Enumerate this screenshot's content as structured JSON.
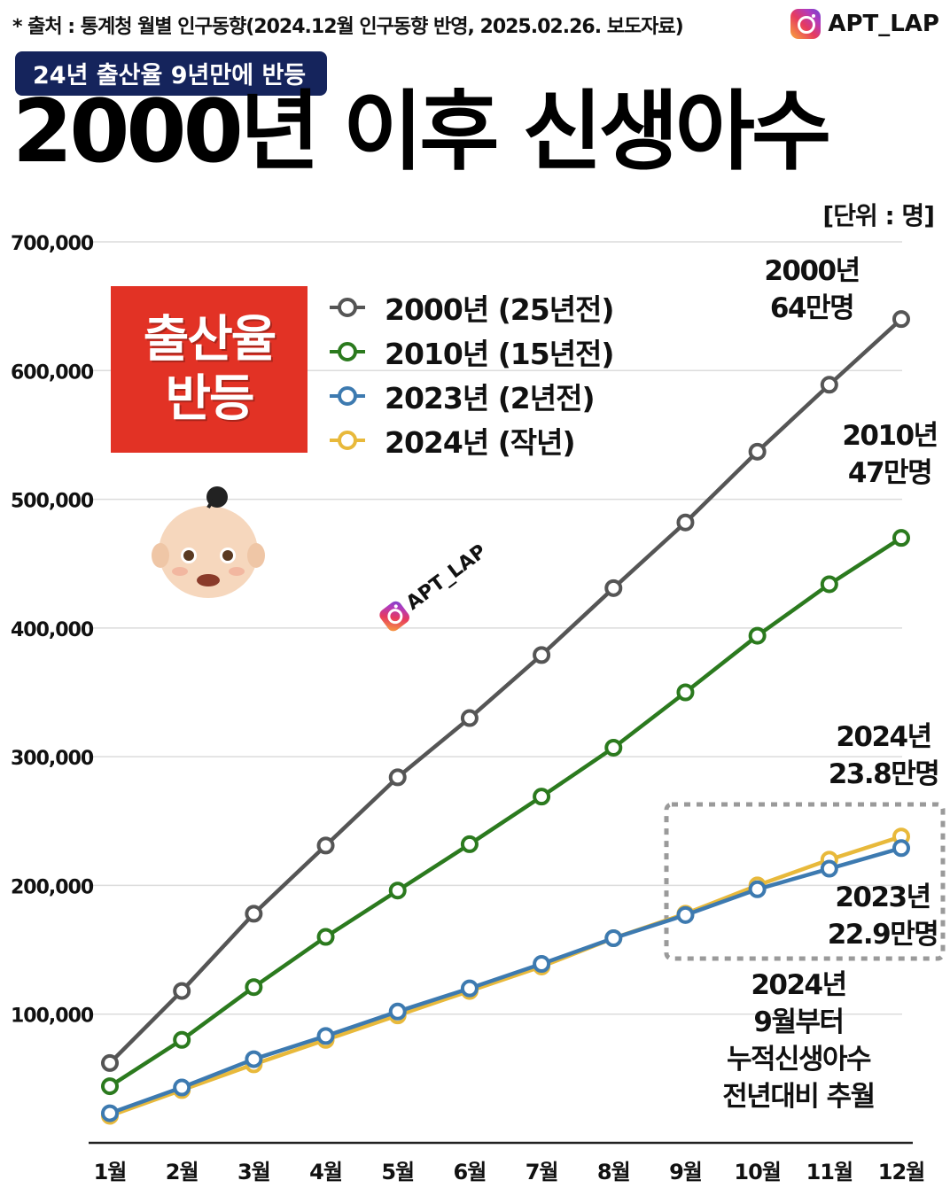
{
  "header": {
    "source": "* 출처 : 통계청 월별 인구동향(2024.12월 인구동향 반영, 2025.02.26. 보도자료)",
    "brand": "APT_LAP",
    "tag": "24년 출산율 9년만에 반등",
    "title": "2000년 이후 신생아수",
    "unit": "[단위 : 명]"
  },
  "badge": {
    "line1": "출산율",
    "line2": "반등"
  },
  "icons": {
    "brand": "instagram-icon",
    "baby": "baby-emoji-icon"
  },
  "watermark": "APT_LAP",
  "chart_data": {
    "type": "line",
    "title": "2000년 이후 신생아수",
    "unit": "[단위 : 명]",
    "categories": [
      "1월",
      "2월",
      "3월",
      "4월",
      "5월",
      "6월",
      "7월",
      "8월",
      "9월",
      "10월",
      "11월",
      "12월"
    ],
    "y_ticks": [
      100000,
      200000,
      300000,
      400000,
      500000,
      600000,
      700000
    ],
    "y_tick_labels": [
      "100,000",
      "200,000",
      "300,000",
      "400,000",
      "500,000",
      "600,000",
      "700,000"
    ],
    "ylim": [
      0,
      700000
    ],
    "grid": true,
    "legend_position": "top-left",
    "series": [
      {
        "name": "2000년 (25년전)",
        "color": "#555555",
        "values": [
          62000,
          118000,
          178000,
          231000,
          284000,
          330000,
          379000,
          431000,
          482000,
          537000,
          589000,
          640000
        ]
      },
      {
        "name": "2010년 (15년전)",
        "color": "#2b7a1e",
        "values": [
          44000,
          80000,
          121000,
          160000,
          196000,
          232000,
          269000,
          307000,
          350000,
          394000,
          434000,
          470000
        ]
      },
      {
        "name": "2023년 (2년전)",
        "color": "#3d7ab0",
        "values": [
          23000,
          43000,
          65000,
          83000,
          102000,
          120000,
          139000,
          159000,
          177000,
          197000,
          213000,
          229000
        ]
      },
      {
        "name": "2024년 (작년)",
        "color": "#e8b93b",
        "values": [
          21000,
          41000,
          61000,
          80000,
          99000,
          118000,
          137000,
          159000,
          178000,
          200000,
          220000,
          238000
        ]
      }
    ],
    "annotations": [
      {
        "lines": [
          "2000년",
          "64만명"
        ]
      },
      {
        "lines": [
          "2010년",
          "47만명"
        ]
      },
      {
        "lines": [
          "2024년",
          "23.8만명"
        ]
      },
      {
        "lines": [
          "2023년",
          "22.9만명"
        ]
      },
      {
        "lines": [
          "2024년",
          "9월부터",
          "누적신생아수",
          "전년대비 추월"
        ]
      }
    ]
  }
}
